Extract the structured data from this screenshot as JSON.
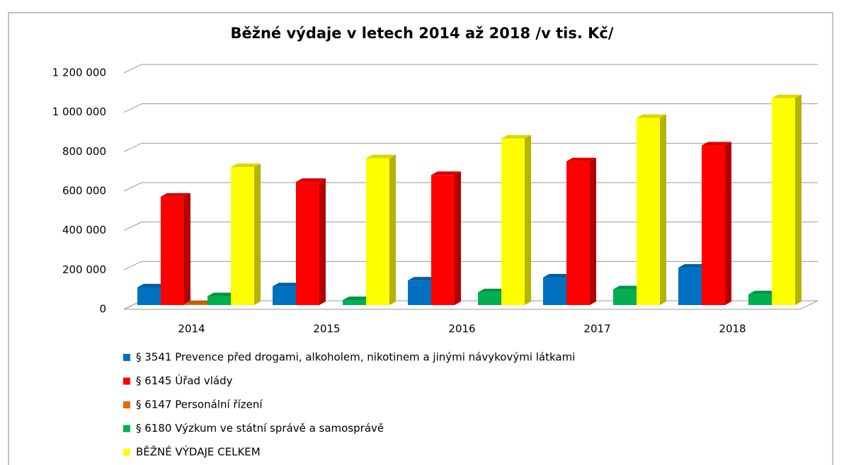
{
  "chart_data": {
    "type": "bar3d",
    "title": "Běžné výdaje v letech 2014 až 2018 /v tis. Kč/",
    "categories": [
      "2014",
      "2015",
      "2016",
      "2017",
      "2018"
    ],
    "series": [
      {
        "name": "§ 3541 Prevence před drogami, alkoholem, nikotinem a jinými návykovými látkami",
        "color": "#0070c0",
        "values": [
          90000,
          95000,
          125000,
          140000,
          190000
        ]
      },
      {
        "name": "§ 6145 Úřad vlády",
        "color": "#ff0000",
        "values": [
          550000,
          625000,
          660000,
          730000,
          810000
        ]
      },
      {
        "name": "§ 6147 Personální řízení",
        "color": "#e36c09",
        "values": [
          5000,
          null,
          null,
          null,
          null
        ]
      },
      {
        "name": "§ 6180 Výzkum ve státní správě a samosprávě",
        "color": "#00b050",
        "values": [
          45000,
          25000,
          65000,
          80000,
          55000
        ]
      },
      {
        "name": "BĚŽNÉ VÝDAJE CELKEM",
        "color": "#ffff00",
        "values": [
          700000,
          745000,
          845000,
          950000,
          1050000
        ]
      }
    ],
    "ylim": [
      0,
      1200000
    ],
    "yticks": [
      0,
      {
        "value": 200000,
        "label": "200 000"
      },
      {
        "value": 400000,
        "label": "400 000"
      },
      {
        "value": 600000,
        "label": "600 000"
      },
      {
        "value": 800000,
        "label": "800 000"
      },
      {
        "value": 1000000,
        "label": "1 000 000"
      },
      {
        "value": 1200000,
        "label": "1 200 000"
      }
    ],
    "grid": true,
    "legend": "bottom"
  }
}
